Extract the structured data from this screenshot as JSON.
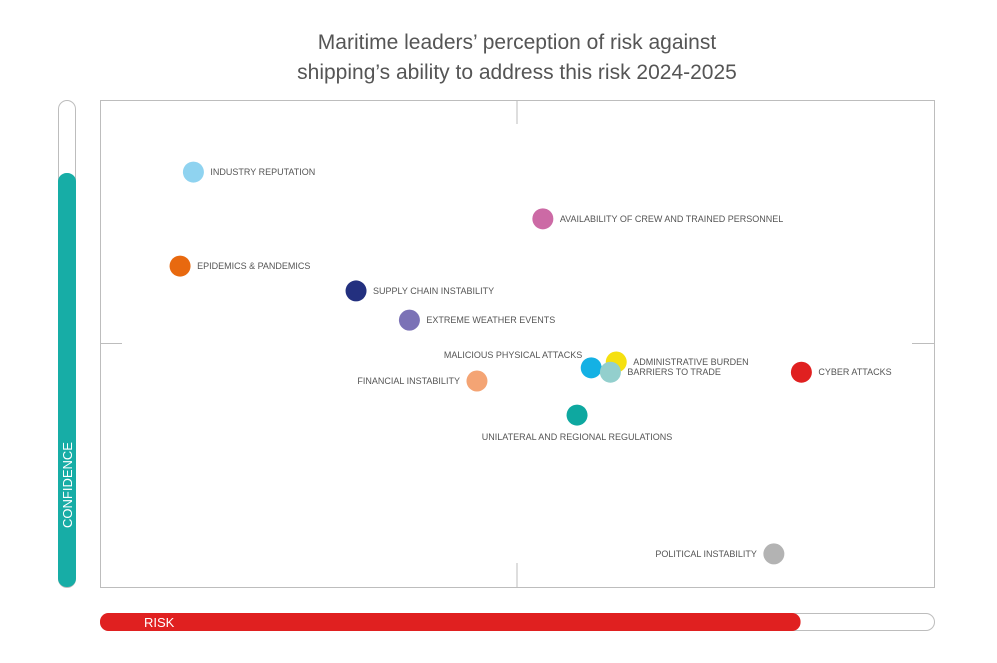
{
  "chart_data": {
    "type": "scatter",
    "title": "Maritime leaders’ perception of risk against shipping’s ability to address this risk 2024-2025",
    "title_lines": [
      "Maritime leaders’ perception of risk against",
      "shipping’s ability to address this risk 2024-2025"
    ],
    "xlabel": "RISK",
    "ylabel": "CONFIDENCE",
    "xlim": [
      0,
      100
    ],
    "ylim": [
      0,
      100
    ],
    "grid": false,
    "quadrant_dividers": true,
    "risk_bar_level": 84,
    "confidence_bar_level": 85,
    "colors": {
      "risk": "#e02020",
      "confidence": "#17ada6"
    },
    "points": [
      {
        "label": "INDUSTRY REPUTATION",
        "x": 11.2,
        "y": 85.2,
        "color": "#8fd3f0",
        "label_side": "right"
      },
      {
        "label": "AVAILABILITY OF CREW AND TRAINED PERSONNEL",
        "x": 53.1,
        "y": 75.6,
        "color": "#cc6aa5",
        "label_side": "right"
      },
      {
        "label": "EPIDEMICS & PANDEMICS",
        "x": 9.6,
        "y": 65.9,
        "color": "#e8690f",
        "label_side": "right"
      },
      {
        "label": "SUPPLY CHAIN INSTABILITY",
        "x": 30.7,
        "y": 60.8,
        "color": "#23307f",
        "label_side": "right"
      },
      {
        "label": "EXTREME WEATHER EVENTS",
        "x": 37.1,
        "y": 54.8,
        "color": "#7b72b6",
        "label_side": "right"
      },
      {
        "label": "ADMINISTRATIVE BURDEN",
        "x": 61.9,
        "y": 46.2,
        "color": "#f5e010",
        "label_side": "right"
      },
      {
        "label": "MALICIOUS PHYSICAL ATTACKS",
        "x": 58.9,
        "y": 45.0,
        "color": "#14b1e4",
        "label_side": "upper-left"
      },
      {
        "label": "BARRIERS TO TRADE",
        "x": 61.2,
        "y": 44.1,
        "color": "#93cfcd",
        "label_side": "right"
      },
      {
        "label": "CYBER ATTACKS",
        "x": 84.1,
        "y": 44.1,
        "color": "#e02020",
        "label_side": "right"
      },
      {
        "label": "FINANCIAL INSTABILITY",
        "x": 45.2,
        "y": 42.3,
        "color": "#f4a474",
        "label_side": "left"
      },
      {
        "label": "UNILATERAL AND REGIONAL REGULATIONS",
        "x": 57.2,
        "y": 35.3,
        "color": "#0ea8a0",
        "label_side": "below"
      },
      {
        "label": "POLITICAL INSTABILITY",
        "x": 80.8,
        "y": 6.8,
        "color": "#b3b3b3",
        "label_side": "left"
      }
    ]
  }
}
